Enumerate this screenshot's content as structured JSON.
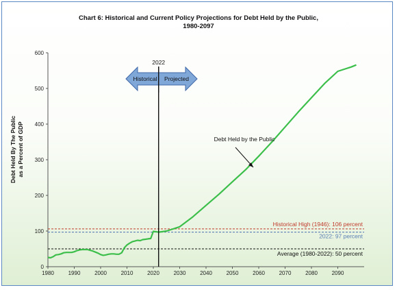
{
  "chart_data": {
    "type": "line",
    "title": "Chart 6:  Historical and Current Policy Projections for Debt Held by the Public,",
    "subtitle": "1980-2097",
    "ylabel_line1": "Debt Held By The Public",
    "ylabel_line2": "as a Percent of GDP",
    "xlabel": "",
    "xlim": [
      1980,
      2100
    ],
    "ylim": [
      0,
      600
    ],
    "xticks": [
      1980,
      1990,
      2000,
      2010,
      2020,
      2030,
      2040,
      2050,
      2060,
      2070,
      2080,
      2090
    ],
    "yticks": [
      0,
      100,
      200,
      300,
      400,
      500,
      600
    ],
    "grid": false,
    "series": [
      {
        "name": "Debt Held by the Public",
        "color": "#3cbf4a",
        "x": [
          1980,
          1981,
          1982,
          1983,
          1984,
          1985,
          1986,
          1987,
          1988,
          1989,
          1990,
          1991,
          1992,
          1993,
          1994,
          1995,
          1996,
          1997,
          1998,
          1999,
          2000,
          2001,
          2002,
          2003,
          2004,
          2005,
          2006,
          2007,
          2008,
          2009,
          2010,
          2011,
          2012,
          2013,
          2014,
          2015,
          2016,
          2017,
          2018,
          2019,
          2020,
          2021,
          2022,
          2025,
          2030,
          2035,
          2040,
          2045,
          2050,
          2055,
          2060,
          2065,
          2070,
          2075,
          2080,
          2085,
          2090,
          2095,
          2097
        ],
        "values": [
          26,
          25,
          28,
          33,
          34,
          36,
          39,
          40,
          40,
          40,
          42,
          45,
          47,
          48,
          48,
          48,
          46,
          44,
          41,
          38,
          34,
          32,
          33,
          35,
          36,
          36,
          35,
          35,
          39,
          53,
          61,
          66,
          70,
          72,
          74,
          73,
          76,
          77,
          78,
          79,
          99,
          98,
          97,
          100,
          112,
          140,
          172,
          204,
          238,
          272,
          310,
          350,
          392,
          434,
          474,
          514,
          548,
          560,
          566
        ]
      }
    ],
    "reference_lines": [
      {
        "label": "Historical High (1946): 106 percent",
        "y": 106,
        "color": "#c0392b"
      },
      {
        "label": "2022: 97 percent",
        "y": 97,
        "color": "#5b7fb5"
      },
      {
        "label": "Average (1980-2022): 50 percent",
        "y": 50,
        "color": "#111111"
      }
    ],
    "annotations": {
      "divider_year": 2022,
      "divider_label": "2022",
      "arrow_left_label": "Historical",
      "arrow_right_label": "Projected",
      "series_label": "Debt Held by the Public"
    }
  }
}
